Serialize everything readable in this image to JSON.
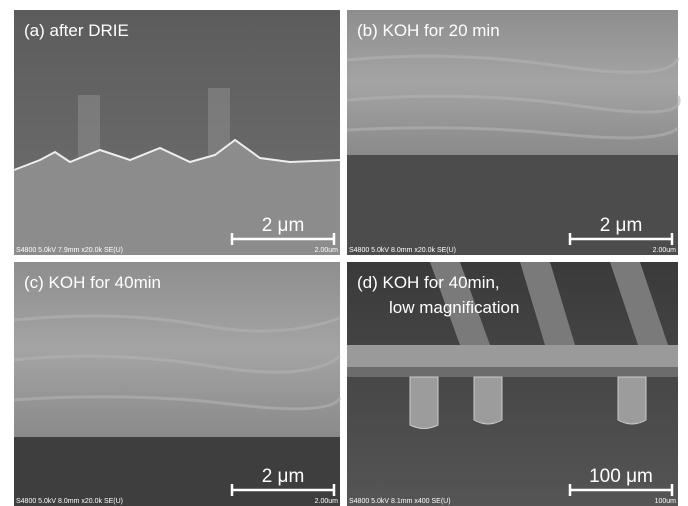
{
  "panels": [
    {
      "label": "(a) after DRIE",
      "scale": "2 μm",
      "info": "S4800 5.0kV 7.9mm x20.0k SE(U)",
      "bar": "2.00um"
    },
    {
      "label": "(b) KOH for 20 min",
      "scale": "2 μm",
      "info": "S4800 5.0kV 8.0mm x20.0k SE(U)",
      "bar": "2.00um"
    },
    {
      "label": "(c) KOH for 40min",
      "scale": "2 μm",
      "info": "S4800 5.0kV 8.0mm x20.0k SE(U)",
      "bar": "2.00um"
    },
    {
      "label": "(d) KOH for 40min,",
      "label2": "low magnification",
      "scale": "100 μm",
      "info": "S4800 5.0kV 8.1mm x400 SE(U)",
      "bar": "100um"
    }
  ]
}
